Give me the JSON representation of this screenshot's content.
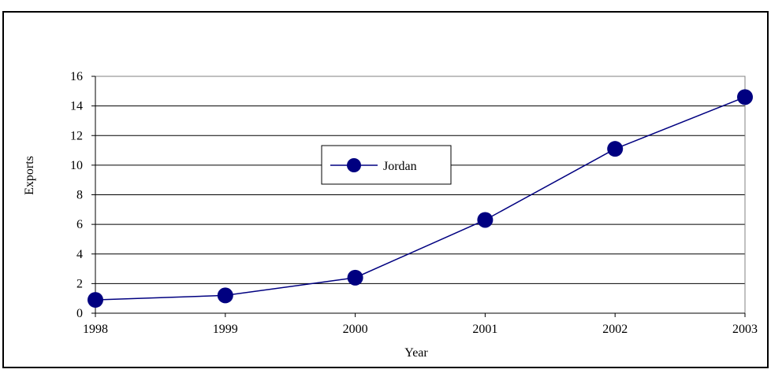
{
  "chart_data": {
    "type": "line",
    "title": "",
    "xlabel": "Year",
    "ylabel": "Exports",
    "x": [
      "1998",
      "1999",
      "2000",
      "2001",
      "2002",
      "2003"
    ],
    "series": [
      {
        "name": "Jordan",
        "values": [
          0.9,
          1.2,
          2.4,
          6.3,
          11.1,
          14.6
        ]
      }
    ],
    "ylim": [
      0,
      16
    ],
    "yticks": [
      "0",
      "2",
      "4",
      "6",
      "8",
      "10",
      "12",
      "14",
      "16"
    ],
    "grid": "horizontal",
    "legend_position": "center",
    "colors": {
      "series_line": "#000080",
      "series_marker": "#000080",
      "frame": "#000000",
      "grid": "#000000"
    },
    "marker": "circle"
  }
}
